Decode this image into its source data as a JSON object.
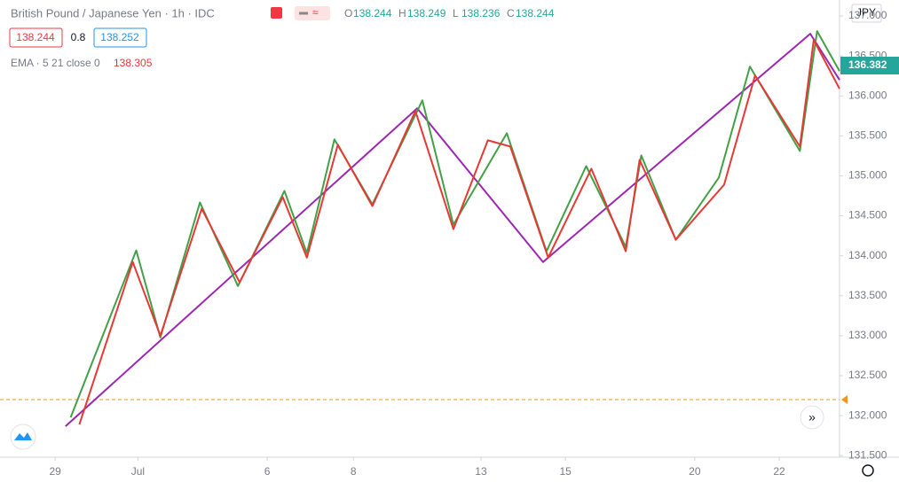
{
  "chart_data": {
    "type": "line",
    "title": "British Pound / Japanese Yen · 1h · IDC",
    "ohlc": [
      {
        "name": "O",
        "value": "138.244"
      },
      {
        "name": "H",
        "value": "138.249"
      },
      {
        "name": "L",
        "value": "138.236"
      },
      {
        "name": "C",
        "value": "138.244"
      }
    ],
    "bid": "138.244",
    "spread": "0.8",
    "ask": "138.252",
    "indicator": {
      "name": "EMA · 5 21 close 0",
      "value": "138.305"
    },
    "currency": "JPY",
    "last_price": "136.382",
    "xlim": [
      0,
      487
    ],
    "ylim": [
      131.48,
      137.2
    ],
    "xticks": [
      {
        "value": 32,
        "label": "29"
      },
      {
        "value": 80,
        "label": "Jul"
      },
      {
        "value": 155,
        "label": "6"
      },
      {
        "value": 205,
        "label": "8"
      },
      {
        "value": 279,
        "label": "13"
      },
      {
        "value": 328,
        "label": "15"
      },
      {
        "value": 403,
        "label": "20"
      },
      {
        "value": 452,
        "label": "22"
      }
    ],
    "yticks": [
      {
        "value": 131.5,
        "label": "131.500"
      },
      {
        "value": 132,
        "label": "132.000"
      },
      {
        "value": 132.5,
        "label": "132.500"
      },
      {
        "value": 133,
        "label": "133.000"
      },
      {
        "value": 133.5,
        "label": "133.500"
      },
      {
        "value": 134,
        "label": "134.000"
      },
      {
        "value": 134.5,
        "label": "134.500"
      },
      {
        "value": 135,
        "label": "135.000"
      },
      {
        "value": 135.5,
        "label": "135.500"
      },
      {
        "value": 136,
        "label": "136.000"
      },
      {
        "value": 136.5,
        "label": "136.500"
      },
      {
        "value": 137,
        "label": "137.000"
      }
    ],
    "reference_line": 132.2,
    "series": [
      {
        "color": "#9c27b0",
        "x": [
          38,
          242,
          315,
          470,
          487
        ],
        "values": [
          131.867,
          135.844,
          133.922,
          136.778,
          136.2
        ]
      },
      {
        "color": "#43a047",
        "x": [
          41,
          79,
          93,
          116,
          138,
          165,
          178,
          194,
          216,
          245,
          263,
          294,
          317,
          340,
          363,
          372,
          392,
          417,
          435,
          464,
          474,
          487
        ],
        "values": [
          131.978,
          134.067,
          132.978,
          134.667,
          133.622,
          134.811,
          134.033,
          135.456,
          134.644,
          135.944,
          134.389,
          135.533,
          134.056,
          135.122,
          134.111,
          135.256,
          134.2,
          134.978,
          136.367,
          135.311,
          136.811,
          136.311
        ]
      },
      {
        "color": "#e53935",
        "x": [
          46,
          77,
          93,
          117,
          139,
          164,
          178,
          196,
          216,
          241,
          263,
          283,
          296,
          318,
          343,
          363,
          371,
          392,
          420,
          438,
          464,
          472,
          487
        ],
        "values": [
          131.889,
          133.922,
          133.0,
          134.589,
          133.667,
          134.733,
          133.978,
          135.389,
          134.622,
          135.811,
          134.333,
          135.444,
          135.367,
          133.978,
          135.089,
          134.056,
          135.2,
          134.2,
          134.889,
          136.256,
          135.367,
          136.7,
          136.089
        ]
      }
    ]
  }
}
